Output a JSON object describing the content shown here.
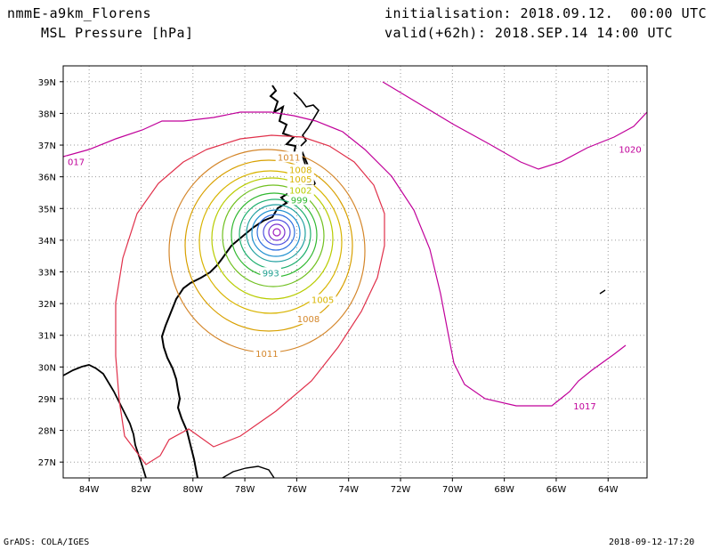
{
  "header": {
    "model": "nmmE-a9km_Florens",
    "variable": "MSL Pressure [hPa]",
    "init": "initialisation: 2018.09.12.  00:00 UTC",
    "valid": "valid(+62h): 2018.SEP.14 14:00 UTC"
  },
  "footer": {
    "credit": "GrADS: COLA/IGES",
    "timestamp": "2018-09-12-17:20"
  },
  "chart_data": {
    "type": "contour-map",
    "x_ticks": [
      "84W",
      "82W",
      "80W",
      "78W",
      "76W",
      "74W",
      "72W",
      "70W",
      "68W",
      "66W",
      "64W"
    ],
    "y_ticks": [
      "39N",
      "38N",
      "37N",
      "36N",
      "35N",
      "34N",
      "33N",
      "32N",
      "31N",
      "30N",
      "29N",
      "28N",
      "27N"
    ],
    "lon_range": [
      -85,
      -62.5
    ],
    "lat_range": [
      26.5,
      39.5
    ],
    "grid": true,
    "center": {
      "lon": -77.0,
      "lat": 34.25
    },
    "contour_labels": [
      {
        "text": "1011",
        "lon": -76.3,
        "lat": 36.6,
        "color": "#d4862a"
      },
      {
        "text": "1008",
        "lon": -75.85,
        "lat": 36.2,
        "color": "#d8b400"
      },
      {
        "text": "1005",
        "lon": -75.85,
        "lat": 35.9,
        "color": "#d8b400"
      },
      {
        "text": "1002",
        "lon": -75.85,
        "lat": 35.55,
        "color": "#b8cc00"
      },
      {
        "text": "999",
        "lon": -75.9,
        "lat": 35.25,
        "color": "#30b830"
      },
      {
        "text": "993",
        "lon": -77.0,
        "lat": 32.95,
        "color": "#20a090"
      },
      {
        "text": "1005",
        "lon": -75.0,
        "lat": 32.1,
        "color": "#d8b400"
      },
      {
        "text": "1008",
        "lon": -75.55,
        "lat": 31.5,
        "color": "#d4862a"
      },
      {
        "text": "1011",
        "lon": -77.15,
        "lat": 30.4,
        "color": "#d4862a"
      },
      {
        "text": "1017",
        "lon": -64.9,
        "lat": 28.75,
        "color": "#c0009a"
      },
      {
        "text": "1020",
        "lon": -63.15,
        "lat": 36.85,
        "color": "#c0009a"
      },
      {
        "text": "017",
        "lon": -84.5,
        "lat": 36.45,
        "color": "#c0009a"
      }
    ]
  }
}
